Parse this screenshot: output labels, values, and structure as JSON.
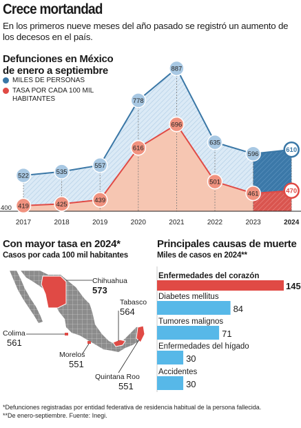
{
  "header": {
    "title": "Crece mortandad",
    "subtitle": "En los primeros nueve meses del año pasado se registró un aumento de los decesos en el país."
  },
  "main_chart": {
    "title_line1": "Defunciones en México",
    "title_line2": "de enero a septiembre",
    "legend": [
      {
        "label": "MILES DE PERSONAS",
        "color": "#3a77a6"
      },
      {
        "label": "TASA POR CADA 100 MIL HABITANTES",
        "color": "#e04a45"
      }
    ]
  },
  "map_section": {
    "title": "Con mayor tasa en 2024*",
    "subtitle": "Casos por cada 100 mil habitantes",
    "states": [
      {
        "name": "Chihuahua",
        "value": "573"
      },
      {
        "name": "Tabasco",
        "value": "564"
      },
      {
        "name": "Colima",
        "value": "561"
      },
      {
        "name": "Morelos",
        "value": "551"
      },
      {
        "name": "Quintana Roo",
        "value": "551"
      }
    ]
  },
  "footnotes": [
    "*Defunciones registradas por entidad federativa de residencia habitual de la persona fallecida.",
    "**De enero-septiembre. Fuente: Inegi."
  ],
  "colors": {
    "blue": "#3a77a6",
    "red": "#e04a45",
    "cyan": "#57b8e8",
    "map_gray": "#8a8a8a"
  },
  "chart_data": [
    {
      "type": "line",
      "title": "Defunciones en México de enero a septiembre",
      "x": [
        "2017",
        "2018",
        "2019",
        "2020",
        "2021",
        "2022",
        "2023",
        "2024"
      ],
      "ylim": [
        400,
        900
      ],
      "y_tick_labels": [
        "400"
      ],
      "series": [
        {
          "name": "MILES DE PERSONAS",
          "values": [
            522,
            535,
            557,
            778,
            887,
            635,
            596,
            610
          ]
        },
        {
          "name": "TASA POR CADA 100 MIL HABITANTES",
          "values": [
            419,
            425,
            439,
            616,
            696,
            501,
            461,
            470
          ]
        }
      ]
    },
    {
      "type": "bar",
      "title": "Principales causas de muerte",
      "subtitle": "Miles de casos en 2024**",
      "categories": [
        "Enfermedades del corazón",
        "Diabetes mellitus",
        "Tumores malignos",
        "Enfermedades del hígado",
        "Accidentes"
      ],
      "values": [
        145,
        84,
        71,
        30,
        30
      ],
      "xlim": [
        0,
        145
      ]
    }
  ]
}
